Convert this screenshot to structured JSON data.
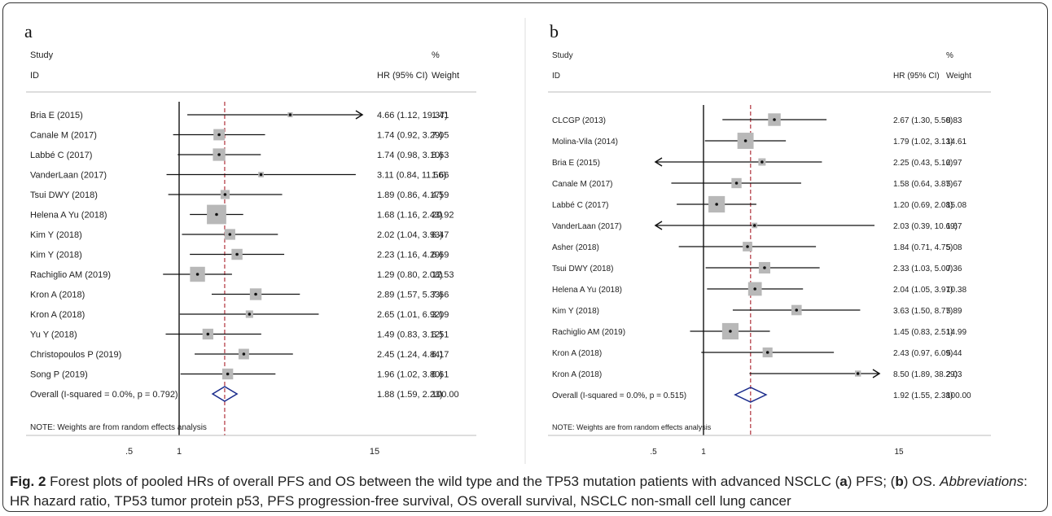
{
  "figure": {
    "caption_label": "Fig. 2",
    "caption_text": "Forest plots of pooled HRs of overall PFS and OS between the wild type and the TP53 mutation patients with advanced NSCLC (",
    "caption_a": "a",
    "caption_mid": ") PFS; (",
    "caption_b": "b",
    "caption_end": ") OS.",
    "caption_abbr_title": "Abbreviations",
    "caption_abbr": ": HR hazard ratio, TP53 tumor protein p53, PFS progression-free survival, OS overall survival, NSCLC non-small cell lung cancer"
  },
  "chart_data": [
    {
      "type": "forest",
      "panel": "a",
      "col_study": "Study",
      "col_id": "ID",
      "col_hr": "HR (95% CI)",
      "col_pct": "%",
      "col_weight": "Weight",
      "note": "NOTE: Weights are from random effects analysis",
      "x_ticks": [
        ".5",
        "1",
        "15"
      ],
      "null_line": 1,
      "overall_line": 1.88,
      "studies": [
        {
          "id": "Bria E (2015)",
          "hr": 4.66,
          "lo": 1.12,
          "hi": 19.37,
          "ci_text": "4.66 (1.12, 19.37)",
          "weight": "1.41",
          "arrow_right": true
        },
        {
          "id": "Canale M (2017)",
          "hr": 1.74,
          "lo": 0.92,
          "hi": 3.29,
          "ci_text": "1.74 (0.92, 3.29)",
          "weight": "7.05"
        },
        {
          "id": "Labbé C (2017)",
          "hr": 1.74,
          "lo": 0.98,
          "hi": 3.1,
          "ci_text": "1.74 (0.98, 3.10)",
          "weight": "8.63"
        },
        {
          "id": "VanderLaan (2017)",
          "hr": 3.11,
          "lo": 0.84,
          "hi": 11.56,
          "ci_text": "3.11 (0.84, 11.56)",
          "weight": "1.66"
        },
        {
          "id": "Tsui DWY (2018)",
          "hr": 1.89,
          "lo": 0.86,
          "hi": 4.17,
          "ci_text": "1.89 (0.86, 4.17)",
          "weight": "4.59"
        },
        {
          "id": "Helena A Yu (2018)",
          "hr": 1.68,
          "lo": 1.16,
          "hi": 2.43,
          "ci_text": "1.68 (1.16, 2.43)",
          "weight": "20.92"
        },
        {
          "id": "Kim Y (2018)",
          "hr": 2.02,
          "lo": 1.04,
          "hi": 3.93,
          "ci_text": "2.02 (1.04, 3.93)",
          "weight": "6.47"
        },
        {
          "id": "Kim Y (2018)",
          "hr": 2.23,
          "lo": 1.16,
          "hi": 4.29,
          "ci_text": "2.23 (1.16, 4.29)",
          "weight": "6.69"
        },
        {
          "id": "Rachiglio AM (2019)",
          "hr": 1.29,
          "lo": 0.8,
          "hi": 2.08,
          "ci_text": "1.29 (0.80, 2.08)",
          "weight": "12.53"
        },
        {
          "id": "Kron A (2018)",
          "hr": 2.89,
          "lo": 1.57,
          "hi": 5.33,
          "ci_text": "2.89 (1.57, 5.33)",
          "weight": "7.66"
        },
        {
          "id": "Kron A (2018)",
          "hr": 2.65,
          "lo": 1.01,
          "hi": 6.92,
          "ci_text": "2.65 (1.01, 6.92)",
          "weight": "3.09"
        },
        {
          "id": "Yu Y (2018)",
          "hr": 1.49,
          "lo": 0.83,
          "hi": 3.12,
          "ci_text": "1.49 (0.83, 3.12)",
          "weight": "6.51"
        },
        {
          "id": "Christopoulos P (2019)",
          "hr": 2.45,
          "lo": 1.24,
          "hi": 4.84,
          "ci_text": "2.45 (1.24, 4.84)",
          "weight": "6.17"
        },
        {
          "id": "Song P (2019)",
          "hr": 1.96,
          "lo": 1.02,
          "hi": 3.8,
          "ci_text": "1.96 (1.02, 3.80)",
          "weight": "6.61"
        }
      ],
      "overall": {
        "id": "Overall  (I-squared = 0.0%, p = 0.792)",
        "hr": 1.88,
        "lo": 1.59,
        "hi": 2.23,
        "ci_text": "1.88 (1.59, 2.23)",
        "weight": "100.00"
      }
    },
    {
      "type": "forest",
      "panel": "b",
      "col_study": "Study",
      "col_id": "ID",
      "col_hr": "HR (95% CI)",
      "col_pct": "%",
      "col_weight": "Weight",
      "note": "NOTE: Weights are from random effects analysis",
      "x_ticks": [
        ".5",
        "1",
        "15"
      ],
      "null_line": 1,
      "overall_line": 1.92,
      "studies": [
        {
          "id": "CLCGP (2013)",
          "hr": 2.67,
          "lo": 1.3,
          "hi": 5.5,
          "ci_text": "2.67 (1.30, 5.50)",
          "weight": "8.83"
        },
        {
          "id": "Molina-Vila (2014)",
          "hr": 1.79,
          "lo": 1.02,
          "hi": 3.13,
          "ci_text": "1.79 (1.02, 3.13)",
          "weight": "14.61"
        },
        {
          "id": "Bria E (2015)",
          "hr": 2.25,
          "lo": 0.43,
          "hi": 5.16,
          "ci_text": "2.25 (0.43, 5.16)",
          "weight": "2.97",
          "arrow_left": true
        },
        {
          "id": "Canale M (2017)",
          "hr": 1.58,
          "lo": 0.64,
          "hi": 3.87,
          "ci_text": "1.58 (0.64, 3.87)",
          "weight": "5.67"
        },
        {
          "id": "Labbé C (2017)",
          "hr": 1.2,
          "lo": 0.69,
          "hi": 2.08,
          "ci_text": "1.20 (0.69, 2.08)",
          "weight": "15.08"
        },
        {
          "id": "VanderLaan (2017)",
          "hr": 2.03,
          "lo": 0.39,
          "hi": 10.69,
          "ci_text": "2.03 (0.39, 10.69)",
          "weight": "1.67",
          "arrow_left": true
        },
        {
          "id": "Asher (2018)",
          "hr": 1.84,
          "lo": 0.71,
          "hi": 4.75,
          "ci_text": "1.84 (0.71, 4.75)",
          "weight": "5.08"
        },
        {
          "id": "Tsui DWY (2018)",
          "hr": 2.33,
          "lo": 1.03,
          "hi": 5.0,
          "ci_text": "2.33 (1.03, 5.00)",
          "weight": "7.36"
        },
        {
          "id": "Helena A Yu (2018)",
          "hr": 2.04,
          "lo": 1.05,
          "hi": 3.97,
          "ci_text": "2.04 (1.05, 3.97)",
          "weight": "10.38"
        },
        {
          "id": "Kim Y (2018)",
          "hr": 3.63,
          "lo": 1.5,
          "hi": 8.77,
          "ci_text": "3.63 (1.50, 8.77)",
          "weight": "5.89"
        },
        {
          "id": "Rachiglio AM (2019)",
          "hr": 1.45,
          "lo": 0.83,
          "hi": 2.51,
          "ci_text": "1.45 (0.83, 2.51)",
          "weight": "14.99"
        },
        {
          "id": "Kron A (2018)",
          "hr": 2.43,
          "lo": 0.97,
          "hi": 6.09,
          "ci_text": "2.43 (0.97, 6.09)",
          "weight": "5.44"
        },
        {
          "id": "Kron A (2018)",
          "hr": 8.5,
          "lo": 1.89,
          "hi": 38.29,
          "ci_text": "8.50 (1.89, 38.29)",
          "weight": "2.03",
          "arrow_right": true
        }
      ],
      "overall": {
        "id": "Overall  (I-squared = 0.0%, p = 0.515)",
        "hr": 1.92,
        "lo": 1.55,
        "hi": 2.38,
        "ci_text": "1.92 (1.55, 2.38)",
        "weight": "100.00"
      }
    }
  ]
}
